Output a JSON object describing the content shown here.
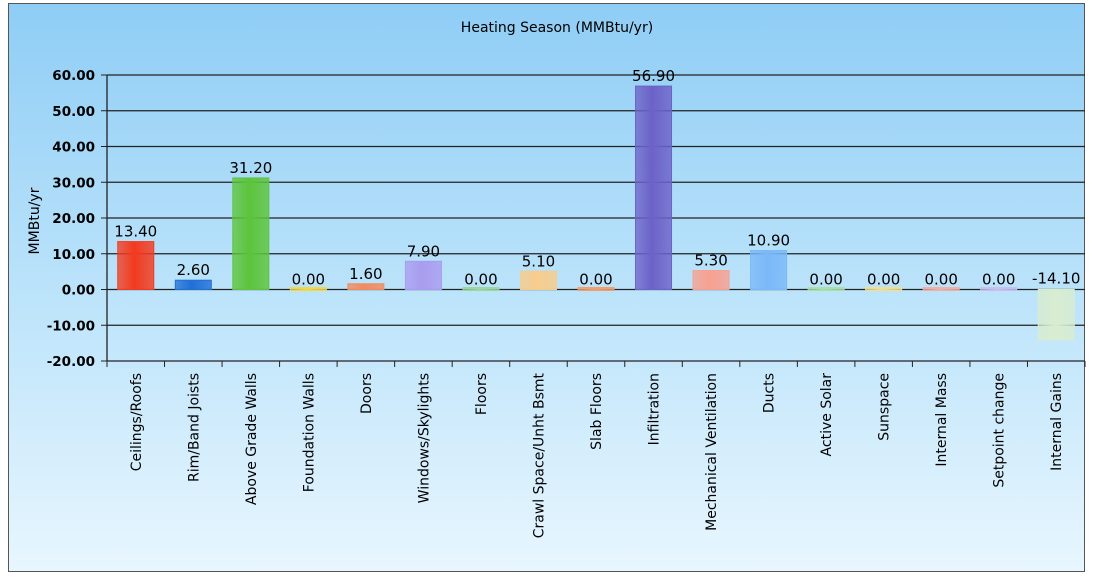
{
  "chart_data": {
    "type": "bar",
    "title": "Heating Season (MMBtu/yr)",
    "xlabel": "",
    "ylabel": "MMBtu/yr",
    "ylim": [
      -20,
      60
    ],
    "ytick_step": 10,
    "ytick_labels": [
      "60.00",
      "50.00",
      "40.00",
      "30.00",
      "20.00",
      "10.00",
      "0.00",
      "-10.00",
      "-20.00"
    ],
    "grid": true,
    "categories": [
      "Ceilings/Roofs",
      "Rim/Band Joists",
      "Above Grade Walls",
      "Foundation Walls",
      "Doors",
      "Windows/Skylights",
      "Floors",
      "Crawl Space/Unht Bsmt",
      "Slab Floors",
      "Infiltration",
      "Mechanical Ventilation",
      "Ducts",
      "Active Solar",
      "Sunspace",
      "Internal Mass",
      "Setpoint change",
      "Internal Gains"
    ],
    "values": [
      13.4,
      2.6,
      31.2,
      0.0,
      1.6,
      7.9,
      0.0,
      5.1,
      0.0,
      56.9,
      5.3,
      10.9,
      0.0,
      0.0,
      0.0,
      0.0,
      -14.1
    ],
    "data_labels": [
      "13.40",
      "2.60",
      "31.20",
      "0.00",
      "1.60",
      "7.90",
      "0.00",
      "5.10",
      "0.00",
      "56.90",
      "5.30",
      "10.90",
      "0.00",
      "0.00",
      "0.00",
      "0.00",
      "-14.10"
    ],
    "colors": [
      "#f23a1e",
      "#1f6fd6",
      "#5cc43a",
      "#f2d84a",
      "#f08b5e",
      "#a99cf0",
      "#9ad8a0",
      "#f8cc8a",
      "#f0a070",
      "#6c62c8",
      "#f8a090",
      "#7ab8f8",
      "#a8e0a8",
      "#f0e090",
      "#f0b0a8",
      "#c8c0f0",
      "#d8ecd0"
    ]
  }
}
